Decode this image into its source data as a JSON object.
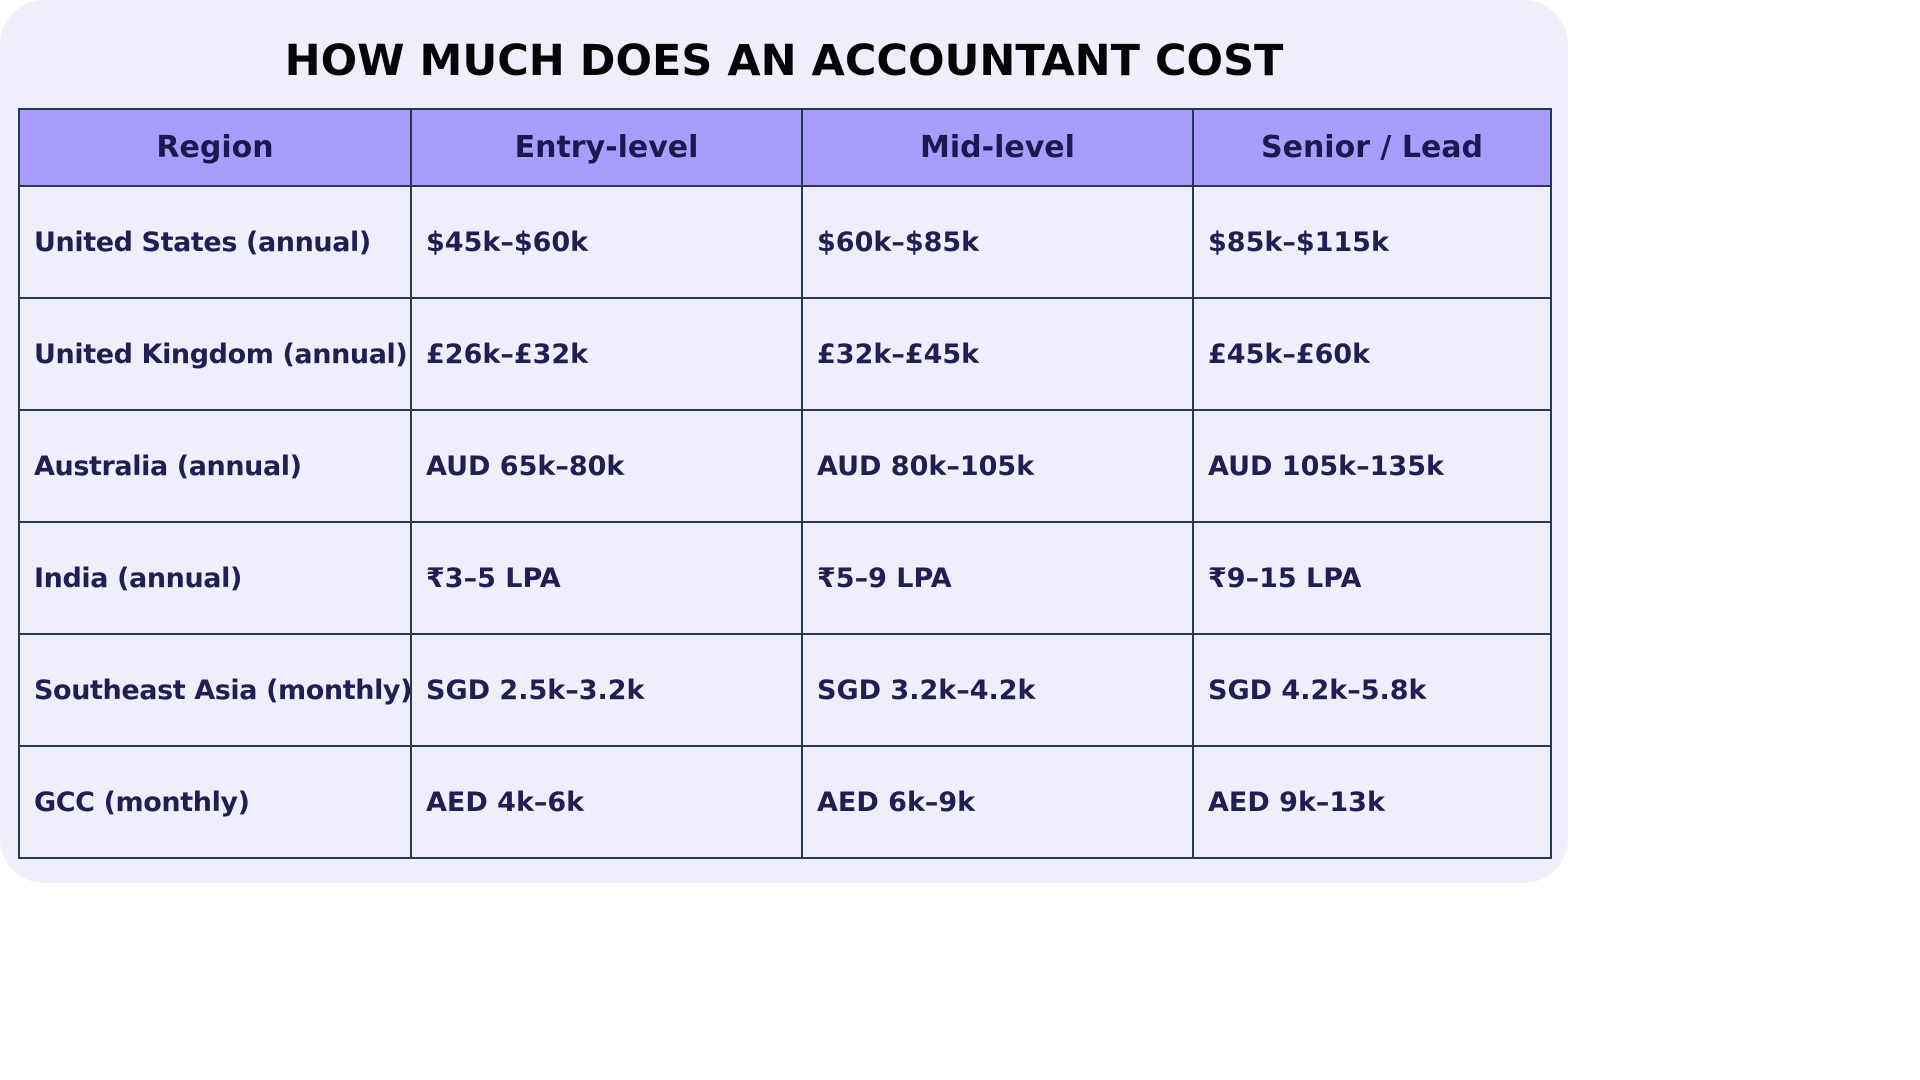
{
  "title": "HOW MUCH DOES AN ACCOUNTANT COST",
  "table": {
    "headers": [
      "Region",
      "Entry-level",
      "Mid-level",
      "Senior / Lead"
    ],
    "rows": [
      [
        "United States (annual)",
        "$45k–$60k",
        "$60k–$85k",
        "$85k–$115k"
      ],
      [
        "United Kingdom (annual)",
        "£26k–£32k",
        "£32k–£45k",
        "£45k–£60k"
      ],
      [
        "Australia (annual)",
        "AUD 65k–80k",
        "AUD 80k–105k",
        "AUD 105k–135k"
      ],
      [
        "India (annual)",
        "₹3–5 LPA",
        "₹5–9 LPA",
        "₹9–15 LPA"
      ],
      [
        "Southeast Asia (monthly)",
        "SGD 2.5k–3.2k",
        "SGD 3.2k–4.2k",
        "SGD 4.2k–5.8k"
      ],
      [
        "GCC (monthly)",
        "AED 4k–6k",
        "AED 6k–9k",
        "AED 9k–13k"
      ]
    ]
  },
  "colors": {
    "background": "#efeffb",
    "header_fill": "#a89cfc",
    "header_text": "#1c1850",
    "cell_text": "#221d52",
    "border": "#243a52",
    "title_text": "#050507"
  }
}
